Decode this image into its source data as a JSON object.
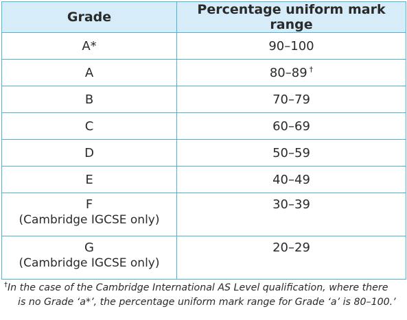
{
  "table": {
    "headers": {
      "grade": "Grade",
      "range": "Percentage uniform mark range"
    },
    "rows": [
      {
        "grade": "A*",
        "note": "",
        "range": "90–100",
        "mark": ""
      },
      {
        "grade": "A",
        "note": "",
        "range": "80–89",
        "mark": "†"
      },
      {
        "grade": "B",
        "note": "",
        "range": "70–79",
        "mark": ""
      },
      {
        "grade": "C",
        "note": "",
        "range": "60–69",
        "mark": ""
      },
      {
        "grade": "D",
        "note": "",
        "range": "50–59",
        "mark": ""
      },
      {
        "grade": "E",
        "note": "",
        "range": "40–49",
        "mark": ""
      },
      {
        "grade": "F",
        "note": "(Cambridge IGCSE only)",
        "range": "30–39",
        "mark": ""
      },
      {
        "grade": "G",
        "note": "(Cambridge IGCSE only)",
        "range": "20–29",
        "mark": ""
      }
    ]
  },
  "footnote": {
    "mark": "†",
    "line1": "In the case of the Cambridge International AS Level qualification, where there",
    "line2": "is no Grade ‘a*’, the percentage uniform mark range for Grade ‘a’ is 80–100.’"
  },
  "colors": {
    "border": "#4fb0d8",
    "header_bg": "#d6ecf8",
    "text": "#2a2a2a"
  }
}
